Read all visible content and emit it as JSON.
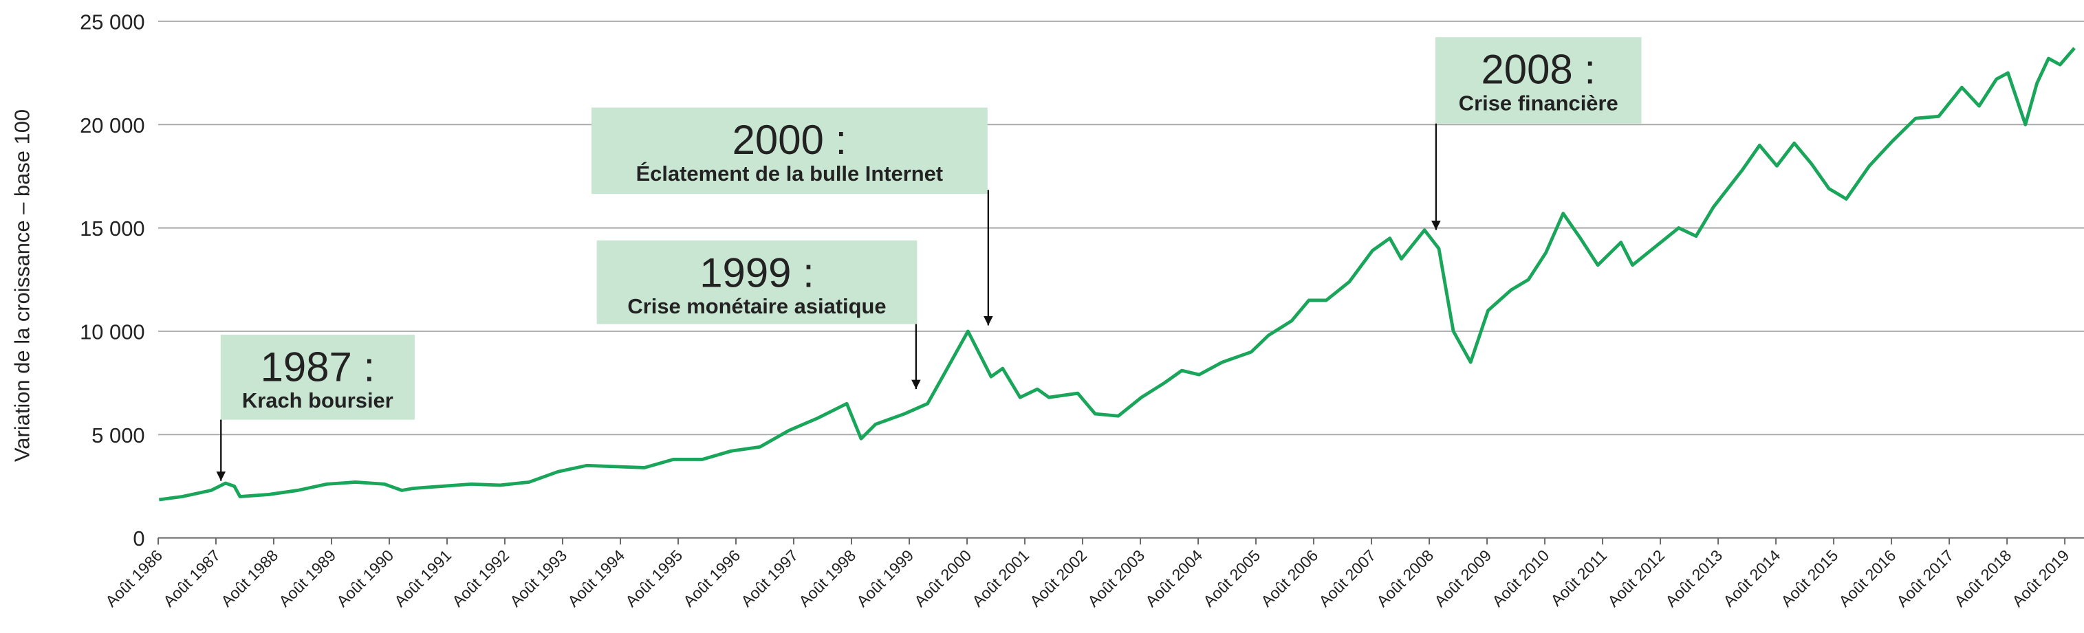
{
  "chart_data": {
    "type": "line",
    "y_label": "Variation de la croissance – base 100",
    "x": [
      1986.6,
      1987.0,
      1987.5,
      1987.75,
      1987.9,
      1988.0,
      1988.5,
      1989.0,
      1989.5,
      1990.0,
      1990.5,
      1990.8,
      1991.0,
      1991.5,
      1992.0,
      1992.5,
      1993.0,
      1993.5,
      1994.0,
      1994.5,
      1995.0,
      1995.5,
      1996.0,
      1996.5,
      1997.0,
      1997.5,
      1998.0,
      1998.5,
      1998.75,
      1999.0,
      1999.5,
      1999.9,
      2000.2,
      2000.6,
      2001.0,
      2001.2,
      2001.5,
      2001.8,
      2002.0,
      2002.5,
      2002.8,
      2003.2,
      2003.6,
      2004.0,
      2004.3,
      2004.6,
      2005.0,
      2005.5,
      2005.8,
      2006.2,
      2006.5,
      2006.8,
      2007.2,
      2007.6,
      2007.9,
      2008.1,
      2008.5,
      2008.75,
      2009.0,
      2009.3,
      2009.6,
      2010.0,
      2010.3,
      2010.6,
      2010.9,
      2011.2,
      2011.5,
      2011.9,
      2012.1,
      2012.5,
      2012.9,
      2013.2,
      2013.5,
      2014.0,
      2014.3,
      2014.6,
      2014.9,
      2015.2,
      2015.5,
      2015.8,
      2016.2,
      2016.6,
      2017.0,
      2017.4,
      2017.8,
      2018.1,
      2018.4,
      2018.6,
      2018.9,
      2019.1,
      2019.3,
      2019.5,
      2019.75
    ],
    "series": [
      {
        "color": "#1aa65a",
        "values": [
          1850,
          2000,
          2300,
          2650,
          2500,
          2000,
          2100,
          2300,
          2600,
          2700,
          2600,
          2300,
          2400,
          2500,
          2600,
          2550,
          2700,
          3200,
          3500,
          3450,
          3400,
          3800,
          3800,
          4200,
          4400,
          5200,
          5800,
          6500,
          4800,
          5500,
          6000,
          6500,
          8000,
          10000,
          7800,
          8200,
          6800,
          7200,
          6800,
          7000,
          6000,
          5900,
          6800,
          7500,
          8100,
          7900,
          8500,
          9000,
          9800,
          10500,
          11500,
          11500,
          12400,
          13900,
          14500,
          13500,
          14900,
          14000,
          10000,
          8500,
          11000,
          12000,
          12500,
          13800,
          15700,
          14500,
          13200,
          14300,
          13200,
          14100,
          15000,
          14600,
          16000,
          17800,
          19000,
          18000,
          19100,
          18100,
          16900,
          16400,
          18000,
          19200,
          20300,
          20400,
          21800,
          20900,
          22200,
          22500,
          20000,
          22000,
          23200,
          22900,
          23700
        ]
      }
    ],
    "xlim": [
      1986.583,
      2019.8
    ],
    "xticks": [
      {
        "value": 1986.583,
        "label": "Août 1986"
      },
      {
        "value": 1987.583,
        "label": "Août 1987"
      },
      {
        "value": 1988.583,
        "label": "Août 1988"
      },
      {
        "value": 1989.583,
        "label": "Août 1989"
      },
      {
        "value": 1990.583,
        "label": "Août 1990"
      },
      {
        "value": 1991.583,
        "label": "Août 1991"
      },
      {
        "value": 1992.583,
        "label": "Août 1992"
      },
      {
        "value": 1993.583,
        "label": "Août 1993"
      },
      {
        "value": 1994.583,
        "label": "Août 1994"
      },
      {
        "value": 1995.583,
        "label": "Août 1995"
      },
      {
        "value": 1996.583,
        "label": "Août 1996"
      },
      {
        "value": 1997.583,
        "label": "Août 1997"
      },
      {
        "value": 1998.583,
        "label": "Août 1998"
      },
      {
        "value": 1999.583,
        "label": "Août 1999"
      },
      {
        "value": 2000.583,
        "label": "Août 2000"
      },
      {
        "value": 2001.583,
        "label": "Août 2001"
      },
      {
        "value": 2002.583,
        "label": "Août 2002"
      },
      {
        "value": 2003.583,
        "label": "Août 2003"
      },
      {
        "value": 2004.583,
        "label": "Août 2004"
      },
      {
        "value": 2005.583,
        "label": "Août 2005"
      },
      {
        "value": 2006.583,
        "label": "Août 2006"
      },
      {
        "value": 2007.583,
        "label": "Août 2007"
      },
      {
        "value": 2008.583,
        "label": "Août 2008"
      },
      {
        "value": 2009.583,
        "label": "Août 2009"
      },
      {
        "value": 2010.583,
        "label": "Août 2010"
      },
      {
        "value": 2011.583,
        "label": "Août 2011"
      },
      {
        "value": 2012.583,
        "label": "Août 2012"
      },
      {
        "value": 2013.583,
        "label": "Août 2013"
      },
      {
        "value": 2014.583,
        "label": "Août 2014"
      },
      {
        "value": 2015.583,
        "label": "Août 2015"
      },
      {
        "value": 2016.583,
        "label": "Août 2016"
      },
      {
        "value": 2017.583,
        "label": "Août 2017"
      },
      {
        "value": 2018.583,
        "label": "Août 2018"
      },
      {
        "value": 2019.583,
        "label": "Août 2019"
      }
    ],
    "ylim": [
      0,
      25000
    ],
    "yticks": [
      0,
      {
        "value": 5000,
        "label": "5 000"
      },
      {
        "value": 10000,
        "label": "10 000"
      },
      {
        "value": 15000,
        "label": "15 000"
      },
      {
        "value": 20000,
        "label": "20 000"
      },
      {
        "value": 25000,
        "label": "25 000"
      }
    ],
    "grid": true,
    "annotations": [
      {
        "title": "1987 :",
        "text": "Krach boursier",
        "x": 1987.67,
        "y": 2760
      },
      {
        "title": "1999 :",
        "text": "Crise monétaire asiatique",
        "x": 1999.7,
        "y": 7200
      },
      {
        "title": "2000 :",
        "text": "Éclatement de la bulle Internet",
        "x": 2000.95,
        "y": 10280
      },
      {
        "title": "2008 :",
        "text": "Crise financière",
        "x": 2008.7,
        "y": 14900
      }
    ]
  }
}
